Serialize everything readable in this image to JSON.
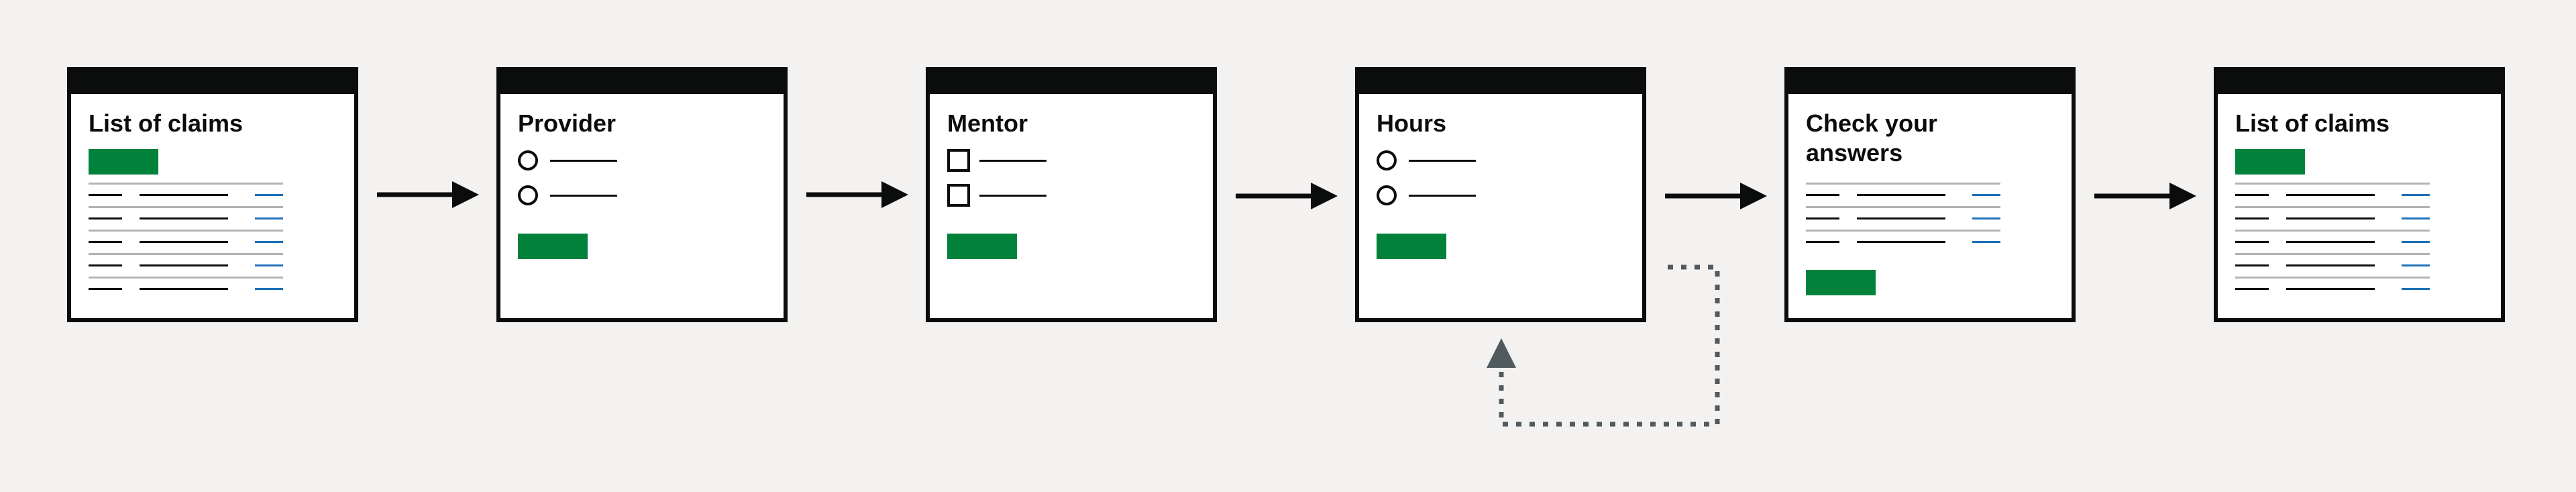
{
  "diagram": {
    "screens": [
      {
        "id": "list-of-claims-start",
        "title": "List of claims",
        "kind": "list"
      },
      {
        "id": "provider",
        "title": "Provider",
        "kind": "radio"
      },
      {
        "id": "mentor",
        "title": "Mentor",
        "kind": "checkbox"
      },
      {
        "id": "hours",
        "title": "Hours",
        "kind": "radio"
      },
      {
        "id": "check-your-answers",
        "title": "Check your answers",
        "kind": "summary"
      },
      {
        "id": "list-of-claims-end",
        "title": "List of claims",
        "kind": "list"
      }
    ],
    "connections": [
      {
        "from": "list-of-claims-start",
        "to": "provider",
        "style": "solid"
      },
      {
        "from": "provider",
        "to": "mentor",
        "style": "solid"
      },
      {
        "from": "mentor",
        "to": "hours",
        "style": "solid"
      },
      {
        "from": "hours",
        "to": "check-your-answers",
        "style": "solid"
      },
      {
        "from": "check-your-answers",
        "to": "list-of-claims-end",
        "style": "solid"
      },
      {
        "from": "check-your-answers",
        "to": "hours",
        "style": "dotted"
      }
    ]
  },
  "colors": {
    "background": "#f3f2f1",
    "frame": "#0b0c0c",
    "button": "#00823b",
    "link": "#1d70b8",
    "divider": "#b1b4b6",
    "loop_arrow": "#505a5f"
  }
}
